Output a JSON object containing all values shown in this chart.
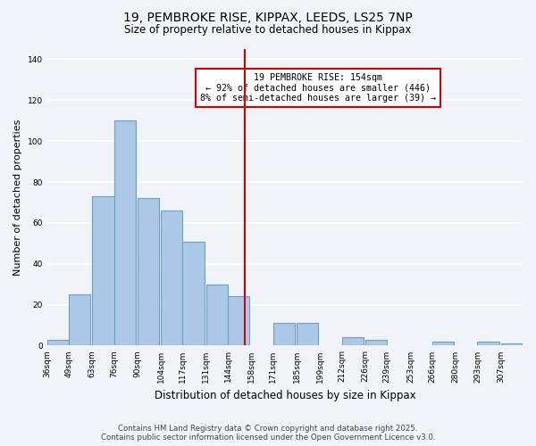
{
  "title": "19, PEMBROKE RISE, KIPPAX, LEEDS, LS25 7NP",
  "subtitle": "Size of property relative to detached houses in Kippax",
  "xlabel": "Distribution of detached houses by size in Kippax",
  "ylabel": "Number of detached properties",
  "bins": [
    36,
    49,
    63,
    76,
    90,
    104,
    117,
    131,
    144,
    158,
    171,
    185,
    199,
    212,
    226,
    239,
    253,
    266,
    280,
    293,
    307
  ],
  "counts": [
    3,
    25,
    73,
    110,
    72,
    66,
    51,
    30,
    24,
    0,
    11,
    11,
    0,
    4,
    3,
    0,
    0,
    2,
    0,
    2,
    1
  ],
  "bar_color": "#adc8e6",
  "bar_edge_color": "#6a9fc8",
  "vline_x": 154,
  "vline_color": "#cc0000",
  "ylim": [
    0,
    145
  ],
  "yticks": [
    0,
    20,
    40,
    60,
    80,
    100,
    120,
    140
  ],
  "annotation_title": "19 PEMBROKE RISE: 154sqm",
  "annotation_line1": "← 92% of detached houses are smaller (446)",
  "annotation_line2": "8% of semi-detached houses are larger (39) →",
  "annotation_box_color": "#ffffff",
  "annotation_border_color": "#cc0000",
  "footer_line1": "Contains HM Land Registry data © Crown copyright and database right 2025.",
  "footer_line2": "Contains public sector information licensed under the Open Government Licence v3.0.",
  "background_color": "#f0f4f8",
  "grid_color": "#ffffff",
  "tick_labels": [
    "36sqm",
    "49sqm",
    "63sqm",
    "76sqm",
    "90sqm",
    "104sqm",
    "117sqm",
    "131sqm",
    "144sqm",
    "158sqm",
    "171sqm",
    "185sqm",
    "199sqm",
    "212sqm",
    "226sqm",
    "239sqm",
    "253sqm",
    "266sqm",
    "280sqm",
    "293sqm",
    "307sqm"
  ]
}
